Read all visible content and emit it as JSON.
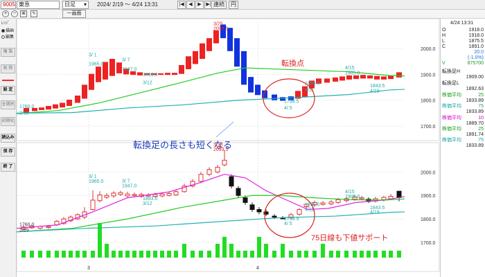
{
  "toolbar": {
    "code": "9005",
    "name": "東急",
    "period": "日足",
    "date_range": "2024/ 2/19 〜  4/24 13:31",
    "one_screen": "一画面",
    "link": "連続",
    "yen": "円",
    "prev": "◀",
    "next": "▶",
    "first": "|◀",
    "last": "▶|"
  },
  "left_panel": {
    "trend_label": "ﾚﾝｼﾞ",
    "radio1": "描画",
    "radio2": "編集",
    "buttons": [
      "複  製",
      "削  除",
      "設  定",
      "全選択",
      "初期化",
      "読込み",
      "保  存",
      "終  了"
    ]
  },
  "right_panel": {
    "time": "4/24 13:31",
    "ohlc": [
      {
        "k": "O",
        "v": "1918.0"
      },
      {
        "k": "H",
        "v": "1918.0"
      },
      {
        "k": "L",
        "v": "1875.5"
      },
      {
        "k": "C",
        "v": "1891.0"
      },
      {
        "k": "",
        "v": "20.0"
      },
      {
        "k": "",
        "v": "(-1.0%)"
      },
      {
        "k": "V",
        "v": "875700"
      }
    ],
    "upper_title": "転換足H",
    "upper_h": "1909.00",
    "upper_l_label": "転換足L",
    "upper_l": "1892.63",
    "upper_ma": [
      {
        "label": "株価平均",
        "period": "25",
        "value": "1833.89",
        "color": "#1a9a1a"
      },
      {
        "label": "株価平均",
        "period": "75",
        "value": "1833.89",
        "color": "#18a0a0"
      }
    ],
    "lower_ma": [
      {
        "label": "株価平均",
        "period": "10",
        "value": "1889.70",
        "color": "#d400d4"
      },
      {
        "label": "株価平均",
        "period": "25",
        "value": "1891.74",
        "color": "#1a9a1a"
      },
      {
        "label": "株価平均",
        "period": "75",
        "value": "1833.89",
        "color": "#18a0a0"
      }
    ]
  },
  "chart_data": [
    {
      "type": "candlestick",
      "name": "転換足",
      "y_ticks": [
        1700,
        1800,
        1900,
        2000
      ],
      "ylim": [
        1660,
        2110
      ],
      "annotations": [
        {
          "text": "3/ 1",
          "sub": "1965.0"
        },
        {
          "text": "3/ 7",
          "sub": "1947.0"
        },
        {
          "text": "1893.0",
          "sub": "3/12"
        },
        {
          "text": "3/25",
          "sub": "2093.5"
        },
        {
          "text": "1798.5",
          "sub": "4/ 5"
        },
        {
          "text": "1856.0",
          "sub": "4/11"
        },
        {
          "text": "4/15",
          "sub": "1905.0"
        },
        {
          "text": "1843.5",
          "sub": "4/19"
        },
        {
          "text": "1760.0",
          "sub": "2/19"
        }
      ],
      "callout": "転換点",
      "caption": "転換足の長さも短くなる",
      "series": [
        {
          "name": "25",
          "color": "#22cc22"
        },
        {
          "name": "75",
          "color": "#22b0b0"
        }
      ]
    },
    {
      "type": "candlestick",
      "name": "日足",
      "y_ticks": [
        1700,
        1800,
        1900,
        2000
      ],
      "ylim": [
        1650,
        2110
      ],
      "annotations": [
        {
          "text": "3/ 1",
          "sub": "1965.0"
        },
        {
          "text": "3/ 7",
          "sub": "1947.0"
        },
        {
          "text": "1893.0",
          "sub": "3/12"
        },
        {
          "text": "3/25",
          "sub": "2093.5"
        },
        {
          "text": "1798.5",
          "sub": "4/ 5"
        },
        {
          "text": "1856.0",
          "sub": "4/11"
        },
        {
          "text": "4/15",
          "sub": "1905.0"
        },
        {
          "text": "1843.5",
          "sub": "4/19"
        },
        {
          "text": "1760.0",
          "sub": "2/19"
        }
      ],
      "caption": "75日線も下値サポート",
      "x_labels": [
        "3",
        "4"
      ],
      "series": [
        {
          "name": "10",
          "color": "#e020e0"
        },
        {
          "name": "25",
          "color": "#22cc22"
        },
        {
          "name": "75",
          "color": "#22b0b0"
        }
      ]
    }
  ]
}
